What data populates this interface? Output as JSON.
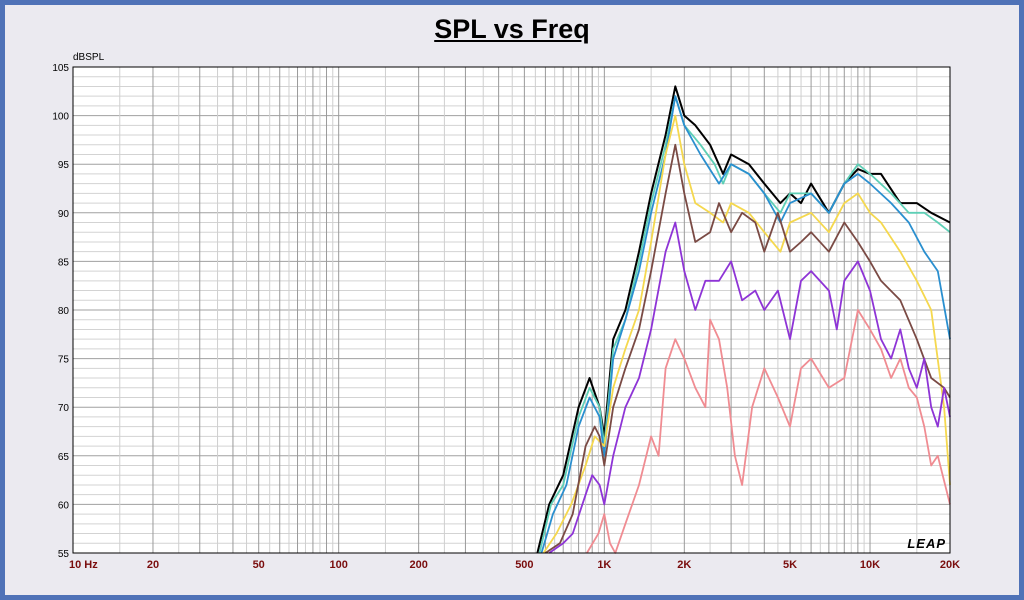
{
  "chart_data": {
    "type": "line",
    "title": "SPL vs Freq",
    "ylabel": "dBSPL",
    "xscale": "log",
    "xlim": [
      10,
      20000
    ],
    "ylim": [
      55,
      105
    ],
    "grid": true,
    "watermark": "LEAP",
    "x_ticks": [
      {
        "v": 10,
        "label": "10  Hz"
      },
      {
        "v": 20,
        "label": "20"
      },
      {
        "v": 50,
        "label": "50"
      },
      {
        "v": 100,
        "label": "100"
      },
      {
        "v": 200,
        "label": "200"
      },
      {
        "v": 500,
        "label": "500"
      },
      {
        "v": 1000,
        "label": "1K"
      },
      {
        "v": 2000,
        "label": "2K"
      },
      {
        "v": 5000,
        "label": "5K"
      },
      {
        "v": 10000,
        "label": "10K"
      },
      {
        "v": 20000,
        "label": "20K"
      }
    ],
    "y_ticks": [
      55,
      60,
      65,
      70,
      75,
      80,
      85,
      90,
      95,
      100,
      105
    ],
    "series": [
      {
        "color": "#000000",
        "points": [
          [
            560,
            55
          ],
          [
            620,
            60
          ],
          [
            700,
            63
          ],
          [
            800,
            70
          ],
          [
            880,
            73
          ],
          [
            960,
            70
          ],
          [
            1000,
            67
          ],
          [
            1080,
            77
          ],
          [
            1200,
            80
          ],
          [
            1350,
            86
          ],
          [
            1500,
            92
          ],
          [
            1700,
            98
          ],
          [
            1850,
            103
          ],
          [
            2000,
            100
          ],
          [
            2200,
            99
          ],
          [
            2500,
            97
          ],
          [
            2800,
            94
          ],
          [
            3000,
            96
          ],
          [
            3500,
            95
          ],
          [
            4000,
            93
          ],
          [
            4600,
            91
          ],
          [
            5000,
            92
          ],
          [
            5500,
            91
          ],
          [
            6000,
            93
          ],
          [
            7000,
            90
          ],
          [
            8000,
            93
          ],
          [
            9000,
            94.5
          ],
          [
            10000,
            94
          ],
          [
            11000,
            94
          ],
          [
            13000,
            91
          ],
          [
            15000,
            91
          ],
          [
            17000,
            90
          ],
          [
            20000,
            89
          ]
        ]
      },
      {
        "color": "#5ecfb6",
        "points": [
          [
            570,
            55
          ],
          [
            630,
            60
          ],
          [
            700,
            62
          ],
          [
            800,
            69
          ],
          [
            880,
            72
          ],
          [
            960,
            70
          ],
          [
            1000,
            66
          ],
          [
            1080,
            76
          ],
          [
            1200,
            79
          ],
          [
            1350,
            85
          ],
          [
            1500,
            91
          ],
          [
            1700,
            97
          ],
          [
            1850,
            102
          ],
          [
            2000,
            99
          ],
          [
            2300,
            97
          ],
          [
            2600,
            95
          ],
          [
            2800,
            93
          ],
          [
            3000,
            95
          ],
          [
            3500,
            94
          ],
          [
            4000,
            92
          ],
          [
            4600,
            90
          ],
          [
            5000,
            92
          ],
          [
            6000,
            92
          ],
          [
            7000,
            90
          ],
          [
            8000,
            93
          ],
          [
            9000,
            95
          ],
          [
            10000,
            94
          ],
          [
            12000,
            92
          ],
          [
            14000,
            90
          ],
          [
            16000,
            90
          ],
          [
            18000,
            89
          ],
          [
            20000,
            88
          ]
        ]
      },
      {
        "color": "#2a8fcf",
        "points": [
          [
            580,
            55
          ],
          [
            640,
            59
          ],
          [
            720,
            62
          ],
          [
            800,
            68
          ],
          [
            880,
            71
          ],
          [
            960,
            69
          ],
          [
            1000,
            65
          ],
          [
            1080,
            75
          ],
          [
            1200,
            79
          ],
          [
            1350,
            84
          ],
          [
            1500,
            90
          ],
          [
            1700,
            96
          ],
          [
            1850,
            102
          ],
          [
            2000,
            99
          ],
          [
            2300,
            96
          ],
          [
            2700,
            93
          ],
          [
            3000,
            95
          ],
          [
            3500,
            94
          ],
          [
            4000,
            92
          ],
          [
            4600,
            89
          ],
          [
            5000,
            91
          ],
          [
            6000,
            92
          ],
          [
            7000,
            90
          ],
          [
            8000,
            93
          ],
          [
            9000,
            94
          ],
          [
            10000,
            93
          ],
          [
            12000,
            91
          ],
          [
            14000,
            89
          ],
          [
            16000,
            86
          ],
          [
            18000,
            84
          ],
          [
            20000,
            77
          ]
        ]
      },
      {
        "color": "#f5d84e",
        "points": [
          [
            590,
            55
          ],
          [
            660,
            57
          ],
          [
            750,
            60
          ],
          [
            850,
            64
          ],
          [
            920,
            67
          ],
          [
            1000,
            66
          ],
          [
            1080,
            72
          ],
          [
            1200,
            76
          ],
          [
            1350,
            80
          ],
          [
            1500,
            87
          ],
          [
            1700,
            96
          ],
          [
            1850,
            100
          ],
          [
            2000,
            95
          ],
          [
            2200,
            91
          ],
          [
            2500,
            90
          ],
          [
            2800,
            89
          ],
          [
            3000,
            91
          ],
          [
            3500,
            90
          ],
          [
            4000,
            88
          ],
          [
            4600,
            86
          ],
          [
            5000,
            89
          ],
          [
            6000,
            90
          ],
          [
            7000,
            88
          ],
          [
            8000,
            91
          ],
          [
            9000,
            92
          ],
          [
            10000,
            90
          ],
          [
            11000,
            89
          ],
          [
            13000,
            86
          ],
          [
            15000,
            83
          ],
          [
            17000,
            80
          ],
          [
            19000,
            70
          ],
          [
            20000,
            62
          ]
        ]
      },
      {
        "color": "#7a4a44",
        "points": [
          [
            600,
            55
          ],
          [
            680,
            56
          ],
          [
            760,
            59
          ],
          [
            850,
            66
          ],
          [
            920,
            68
          ],
          [
            960,
            67
          ],
          [
            1000,
            64
          ],
          [
            1080,
            70
          ],
          [
            1200,
            74
          ],
          [
            1350,
            78
          ],
          [
            1500,
            84
          ],
          [
            1700,
            92
          ],
          [
            1850,
            97
          ],
          [
            2000,
            92
          ],
          [
            2200,
            87
          ],
          [
            2500,
            88
          ],
          [
            2700,
            91
          ],
          [
            3000,
            88
          ],
          [
            3300,
            90
          ],
          [
            3700,
            89
          ],
          [
            4000,
            86
          ],
          [
            4500,
            90
          ],
          [
            5000,
            86
          ],
          [
            5500,
            87
          ],
          [
            6000,
            88
          ],
          [
            7000,
            86
          ],
          [
            8000,
            89
          ],
          [
            9000,
            87
          ],
          [
            10000,
            85
          ],
          [
            11000,
            83
          ],
          [
            13000,
            81
          ],
          [
            15000,
            77
          ],
          [
            17000,
            73
          ],
          [
            19000,
            72
          ],
          [
            20000,
            71
          ]
        ]
      },
      {
        "color": "#8e34d6",
        "points": [
          [
            620,
            55
          ],
          [
            700,
            56
          ],
          [
            760,
            57
          ],
          [
            850,
            61
          ],
          [
            900,
            63
          ],
          [
            960,
            62
          ],
          [
            1000,
            60
          ],
          [
            1080,
            65
          ],
          [
            1200,
            70
          ],
          [
            1350,
            73
          ],
          [
            1500,
            78
          ],
          [
            1700,
            86
          ],
          [
            1850,
            89
          ],
          [
            2000,
            84
          ],
          [
            2200,
            80
          ],
          [
            2400,
            83
          ],
          [
            2700,
            83
          ],
          [
            3000,
            85
          ],
          [
            3300,
            81
          ],
          [
            3700,
            82
          ],
          [
            4000,
            80
          ],
          [
            4500,
            82
          ],
          [
            5000,
            77
          ],
          [
            5500,
            83
          ],
          [
            6000,
            84
          ],
          [
            7000,
            82
          ],
          [
            7500,
            78
          ],
          [
            8000,
            83
          ],
          [
            9000,
            85
          ],
          [
            10000,
            82
          ],
          [
            11000,
            77
          ],
          [
            12000,
            75
          ],
          [
            13000,
            78
          ],
          [
            14000,
            74
          ],
          [
            15000,
            72
          ],
          [
            16000,
            75
          ],
          [
            17000,
            70
          ],
          [
            18000,
            68
          ],
          [
            19000,
            72
          ],
          [
            20000,
            69
          ]
        ]
      },
      {
        "color": "#f08c92",
        "points": [
          [
            860,
            55
          ],
          [
            950,
            57
          ],
          [
            1000,
            59
          ],
          [
            1050,
            56
          ],
          [
            1100,
            55
          ],
          [
            1200,
            58
          ],
          [
            1350,
            62
          ],
          [
            1500,
            67
          ],
          [
            1600,
            65
          ],
          [
            1700,
            74
          ],
          [
            1850,
            77
          ],
          [
            2000,
            75
          ],
          [
            2200,
            72
          ],
          [
            2400,
            70
          ],
          [
            2500,
            79
          ],
          [
            2700,
            77
          ],
          [
            2900,
            72
          ],
          [
            3100,
            65
          ],
          [
            3300,
            62
          ],
          [
            3600,
            70
          ],
          [
            4000,
            74
          ],
          [
            4500,
            71
          ],
          [
            5000,
            68
          ],
          [
            5500,
            74
          ],
          [
            6000,
            75
          ],
          [
            7000,
            72
          ],
          [
            8000,
            73
          ],
          [
            9000,
            80
          ],
          [
            10000,
            78
          ],
          [
            11000,
            76
          ],
          [
            12000,
            73
          ],
          [
            13000,
            75
          ],
          [
            14000,
            72
          ],
          [
            15000,
            71
          ],
          [
            16000,
            68
          ],
          [
            17000,
            64
          ],
          [
            18000,
            65
          ],
          [
            20000,
            60
          ]
        ]
      }
    ]
  }
}
